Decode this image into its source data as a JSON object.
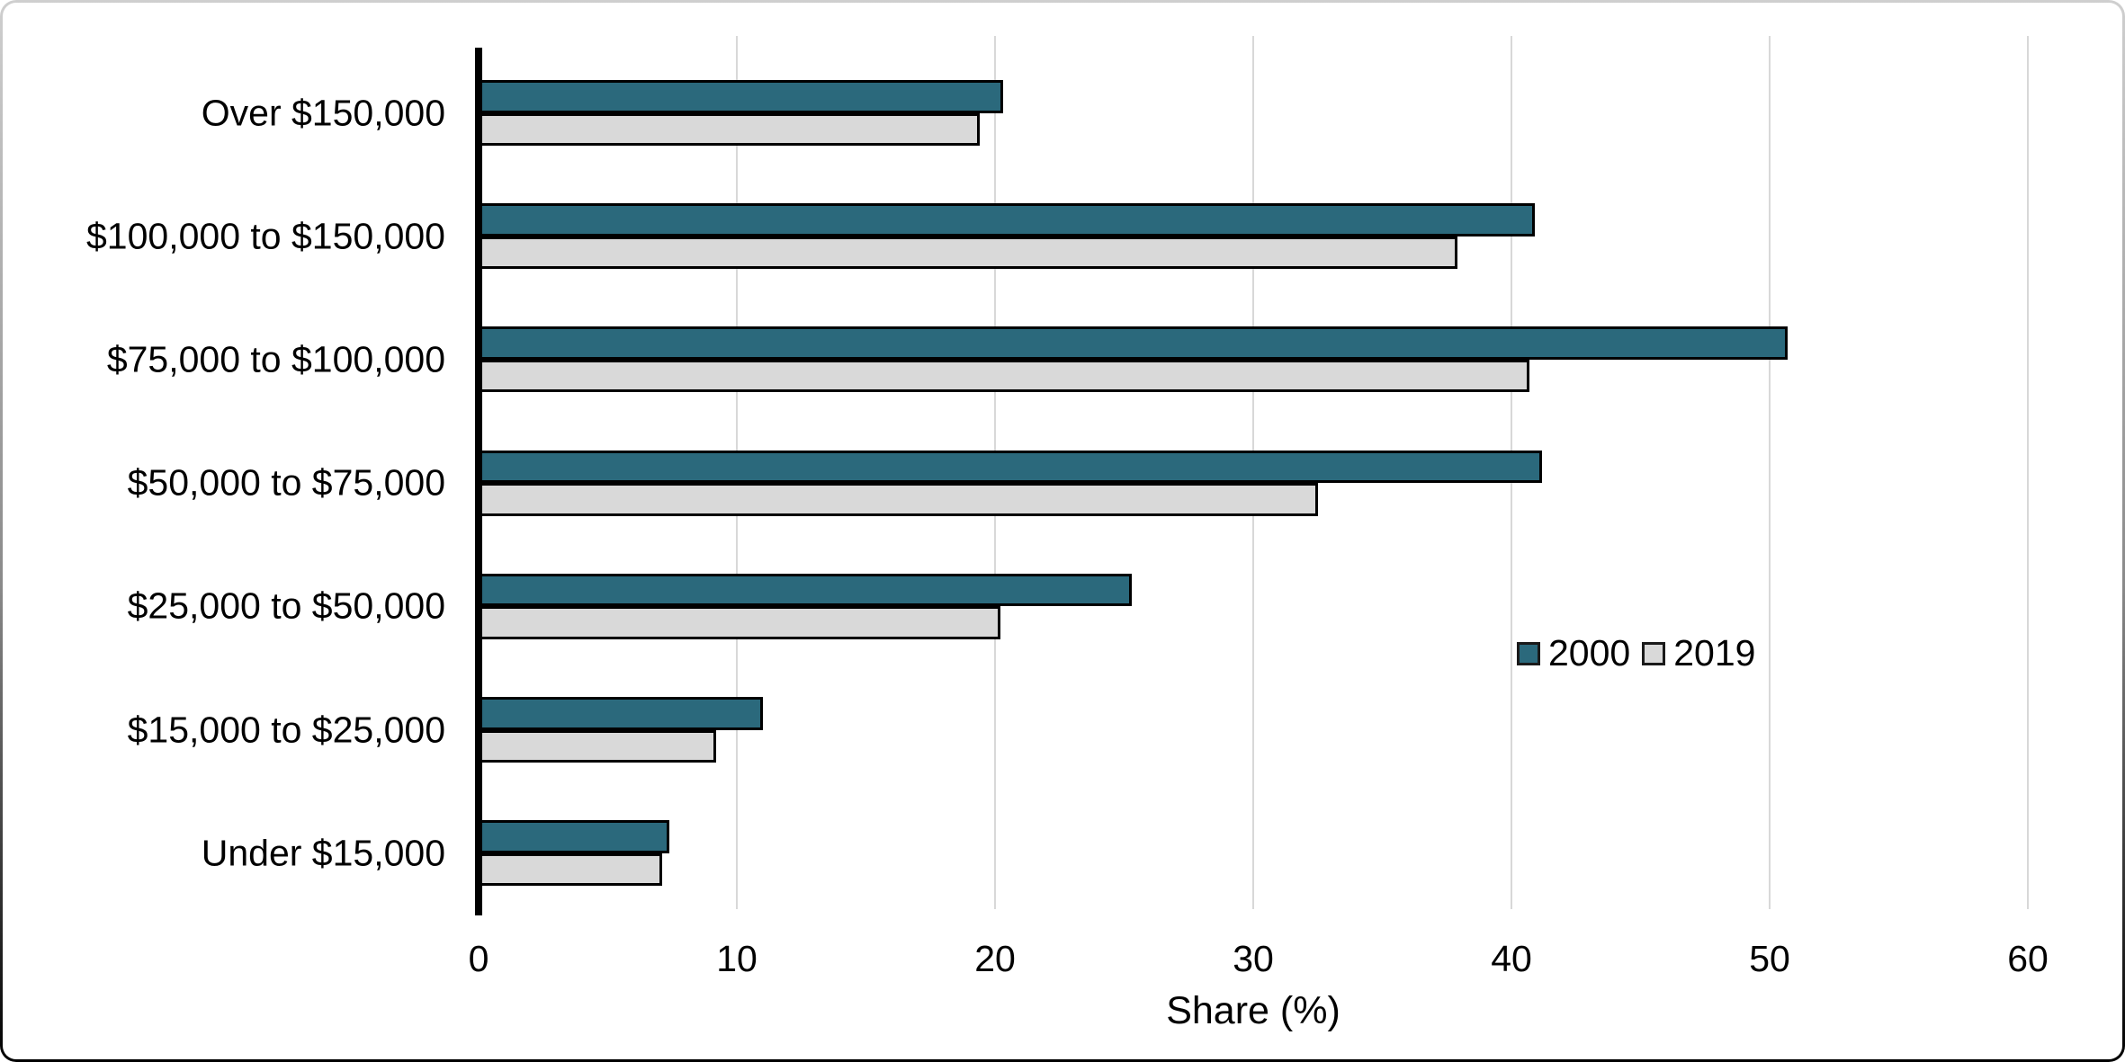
{
  "chart_data": {
    "type": "bar",
    "orientation": "horizontal",
    "title": "",
    "xlabel": "Share (%)",
    "ylabel": "",
    "xlim": [
      0,
      60
    ],
    "xticks": [
      0,
      10,
      20,
      30,
      40,
      50,
      60
    ],
    "grid": "vertical-light-gray",
    "legend_position": "inside-right-middle",
    "categories": [
      "Over $150,000",
      "$100,000 to $150,000",
      "$75,000 to $100,000",
      "$50,000 to $75,000",
      "$25,000 to $50,000",
      "$15,000 to $25,000",
      "Under $15,000"
    ],
    "series": [
      {
        "name": "2000",
        "color": "#2B697C",
        "values": [
          20.3,
          40.9,
          50.7,
          41.2,
          25.3,
          11.0,
          7.4
        ]
      },
      {
        "name": "2019",
        "color": "#D9D9D9",
        "values": [
          19.4,
          37.9,
          40.7,
          32.5,
          20.2,
          9.2,
          7.1
        ]
      }
    ],
    "colors": {
      "bar_border": "#000000",
      "axis_line": "#000000",
      "gridline": "#D8D8D8",
      "text": "#000000"
    }
  }
}
